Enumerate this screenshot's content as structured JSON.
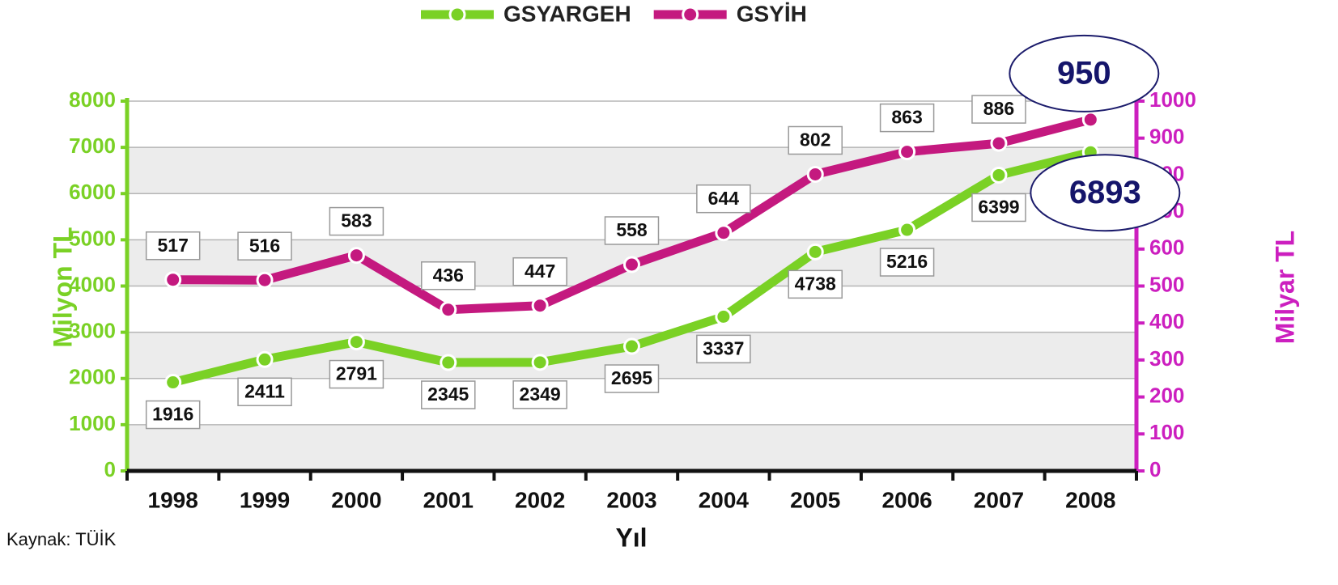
{
  "chart_data": {
    "type": "line",
    "categories": [
      "1998",
      "1999",
      "2000",
      "2001",
      "2002",
      "2003",
      "2004",
      "2005",
      "2006",
      "2007",
      "2008"
    ],
    "series": [
      {
        "name": "GSYARGEH",
        "color": "#7ad125",
        "values": [
          1916,
          2411,
          2791,
          2345,
          2349,
          2695,
          3337,
          4738,
          5216,
          6399,
          6893
        ]
      },
      {
        "name": "GSYİH",
        "color": "#c4197f",
        "axis": "y2",
        "values": [
          517,
          516,
          583,
          436,
          447,
          558,
          644,
          802,
          863,
          886,
          950
        ]
      }
    ],
    "ylim": [
      0,
      8000
    ],
    "yticks": [
      0,
      1000,
      2000,
      3000,
      4000,
      5000,
      6000,
      7000,
      8000
    ],
    "y2lim": [
      0,
      1000
    ],
    "y2ticks": [
      0,
      100,
      200,
      300,
      400,
      500,
      600,
      700,
      800,
      900,
      1000
    ],
    "ylabel": "Milyon TL",
    "y2label": "Milyar TL",
    "xlabel": "Yıl",
    "annotation": "Kaynak: TÜİK",
    "legend": "top",
    "grid": true
  }
}
